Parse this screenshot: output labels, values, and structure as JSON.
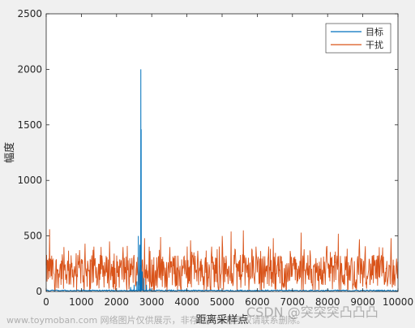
{
  "chart_data": {
    "type": "line",
    "title": "",
    "xlabel": "距离采样点",
    "ylabel": "幅度",
    "xlim": [
      0,
      10000
    ],
    "ylim": [
      0,
      2500
    ],
    "xticks": [
      0,
      1000,
      2000,
      3000,
      4000,
      5000,
      6000,
      7000,
      8000,
      9000,
      10000
    ],
    "yticks": [
      0,
      500,
      1000,
      1500,
      2000,
      2500
    ],
    "legend_position": "top-right",
    "grid": false,
    "series": [
      {
        "name": "目标",
        "color": "#0072BD",
        "baseline": 8,
        "peaks": [
          {
            "x": 2400,
            "y": 40
          },
          {
            "x": 2500,
            "y": 60
          },
          {
            "x": 2580,
            "y": 90
          },
          {
            "x": 2620,
            "y": 500
          },
          {
            "x": 2660,
            "y": 420
          },
          {
            "x": 2690,
            "y": 2000
          },
          {
            "x": 2700,
            "y": 1460
          },
          {
            "x": 2730,
            "y": 180
          },
          {
            "x": 2780,
            "y": 120
          },
          {
            "x": 2850,
            "y": 60
          },
          {
            "x": 2950,
            "y": 30
          }
        ]
      },
      {
        "name": "干扰",
        "color": "#D95319",
        "typical_min": 20,
        "typical_max": 330,
        "spikes": [
          {
            "x": 100,
            "y": 560
          },
          {
            "x": 500,
            "y": 400
          },
          {
            "x": 1100,
            "y": 430
          },
          {
            "x": 1800,
            "y": 450
          },
          {
            "x": 2300,
            "y": 410
          },
          {
            "x": 2800,
            "y": 480
          },
          {
            "x": 3250,
            "y": 490
          },
          {
            "x": 4100,
            "y": 460
          },
          {
            "x": 5000,
            "y": 500
          },
          {
            "x": 5250,
            "y": 540
          },
          {
            "x": 5600,
            "y": 550
          },
          {
            "x": 6450,
            "y": 480
          },
          {
            "x": 7250,
            "y": 530
          },
          {
            "x": 8300,
            "y": 520
          },
          {
            "x": 8900,
            "y": 470
          },
          {
            "x": 9800,
            "y": 480
          }
        ]
      }
    ]
  },
  "watermark": {
    "site": "www.toymoban.com 网络图片仅供展示，非存储，如有侵权请联系删除。",
    "author": "CSDN @突突突凸凸凸"
  }
}
